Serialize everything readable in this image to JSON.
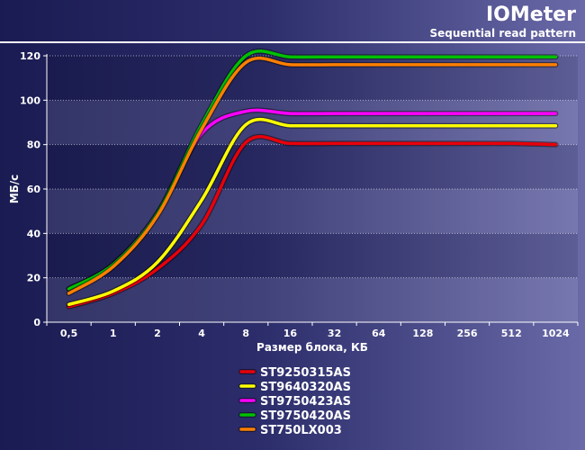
{
  "header": {
    "title": "IOMeter",
    "subtitle": "Sequential read pattern"
  },
  "chart_data": {
    "type": "line",
    "categories": [
      "0,5",
      "1",
      "2",
      "4",
      "8",
      "16",
      "32",
      "64",
      "128",
      "256",
      "512",
      "1024"
    ],
    "ylabel": "МБ/с",
    "xlabel": "Размер блока, КБ",
    "ylim": [
      0,
      120
    ],
    "yticks": [
      0,
      20,
      40,
      60,
      80,
      100,
      120
    ],
    "grid": true,
    "legend_position": "bottom",
    "series": [
      {
        "name": "ST9250315AS",
        "color": "#e8000a",
        "values": [
          7,
          13,
          24,
          44,
          81,
          80.5,
          80.5,
          80.5,
          80.5,
          80.5,
          80.5,
          80
        ]
      },
      {
        "name": "ST9640320AS",
        "color": "#ffff00",
        "values": [
          8,
          14,
          27,
          55,
          89,
          88.5,
          88.5,
          88.5,
          88.5,
          88.5,
          88.5,
          88.5
        ]
      },
      {
        "name": "ST9750423AS",
        "color": "#ff00ff",
        "values": [
          15,
          26,
          49,
          85,
          95,
          94,
          94,
          94,
          94,
          94,
          94,
          94
        ]
      },
      {
        "name": "ST9750420AS",
        "color": "#00c000",
        "values": [
          15,
          26,
          49,
          89,
          120,
          119.5,
          119.5,
          119.5,
          119.5,
          119.5,
          119.5,
          119.5
        ]
      },
      {
        "name": "ST750LX003",
        "color": "#ff7f00",
        "values": [
          13,
          25,
          48,
          87,
          117,
          116,
          116,
          116,
          116,
          116,
          116,
          116
        ]
      }
    ]
  }
}
